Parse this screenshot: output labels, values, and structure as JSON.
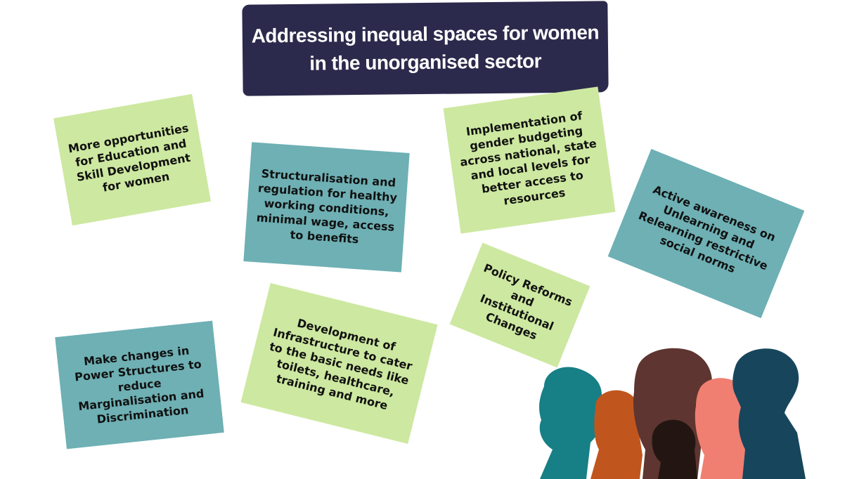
{
  "title": {
    "line1": "Addressing inequal spaces for women",
    "line2": "in the unorganised sector"
  },
  "notes": {
    "education": "More opportunities for Education and Skill Development for women",
    "structuralisation": "Structuralisation and regulation for healthy working conditions, minimal wage, access to benefits",
    "budgeting": "Implementation of gender budgeting across national, state and local levels for better access to resources",
    "awareness": "Active awareness on Unlearning and Relearning restrictive social norms",
    "policy": "Policy Reforms and Institutional Changes",
    "infrastructure": "Development of Infrastructure to cater to the basic needs like toilets, healthcare, training and more",
    "power": "Make changes in Power Structures to reduce Marginalisation and Discrimination"
  },
  "colors": {
    "banner": "#2b2a4c",
    "green_note": "#cde8a0",
    "teal_note": "#6eb0b4",
    "silhouettes": [
      "#177f86",
      "#c0561e",
      "#5e3530",
      "#231612",
      "#f07f72",
      "#17465c"
    ]
  }
}
